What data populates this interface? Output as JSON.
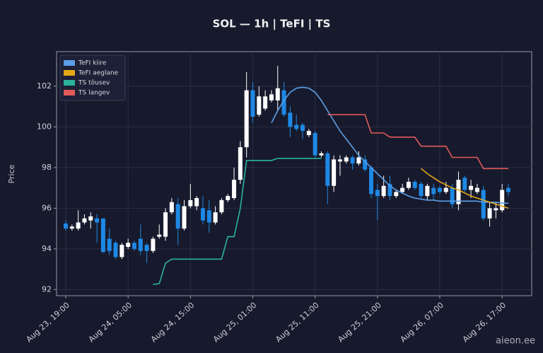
{
  "chart_data": {
    "type": "candlestick",
    "title": "SOL — 1h  |  TeFI  |  TS",
    "y_label": "Price",
    "watermark": "aieon.ee",
    "categories": [
      "Aug 23, 19:00",
      null,
      null,
      null,
      null,
      null,
      null,
      null,
      null,
      null,
      "Aug 24, 05:00",
      null,
      null,
      null,
      null,
      null,
      null,
      null,
      null,
      null,
      "Aug 24, 15:00",
      null,
      null,
      null,
      null,
      null,
      null,
      null,
      null,
      null,
      "Aug 25, 01:00",
      null,
      null,
      null,
      null,
      null,
      null,
      null,
      null,
      null,
      "Aug 25, 11:00",
      null,
      null,
      null,
      null,
      null,
      null,
      null,
      null,
      null,
      "Aug 25, 21:00",
      null,
      null,
      null,
      null,
      null,
      null,
      null,
      null,
      null,
      "Aug 26, 07:00",
      null,
      null,
      null,
      null,
      null,
      null,
      null,
      null,
      null,
      "Aug 26, 17:00",
      null
    ],
    "open": [
      95.25,
      95.0,
      95.0,
      95.3,
      95.4,
      95.5,
      95.5,
      94.5,
      94.3,
      93.6,
      94.1,
      94.3,
      94.5,
      94.2,
      93.9,
      94.6,
      94.6,
      95.8,
      96.2,
      95.0,
      96.1,
      96.1,
      96.0,
      95.9,
      95.3,
      95.8,
      96.4,
      96.5,
      97.4,
      99.0,
      101.8,
      100.6,
      100.9,
      101.3,
      101.3,
      101.8,
      100.7,
      100.1,
      100.1,
      99.6,
      99.7,
      98.6,
      98.7,
      97.1,
      98.3,
      98.3,
      98.5,
      98.2,
      98.4,
      98.0,
      96.9,
      96.6,
      97.2,
      96.6,
      96.8,
      97.0,
      97.3,
      97.2,
      96.6,
      97.0,
      97.0,
      96.8,
      97.0,
      96.2,
      97.5,
      96.9,
      96.8,
      96.9,
      95.5,
      95.9,
      95.9,
      97.0
    ],
    "high": [
      95.4,
      95.2,
      95.9,
      95.7,
      95.8,
      95.7,
      95.5,
      95.0,
      94.4,
      94.3,
      94.5,
      94.4,
      95.2,
      94.3,
      94.6,
      95.2,
      96.0,
      96.5,
      96.5,
      96.4,
      97.2,
      96.6,
      96.6,
      96.4,
      96.1,
      96.5,
      96.7,
      98.0,
      99.3,
      102.7,
      102.2,
      102.0,
      101.8,
      101.8,
      103.0,
      102.2,
      101.0,
      100.6,
      100.2,
      99.9,
      99.8,
      98.8,
      98.8,
      98.6,
      98.6,
      98.6,
      98.6,
      98.8,
      98.6,
      98.1,
      97.2,
      97.6,
      97.6,
      96.9,
      97.2,
      97.5,
      97.4,
      97.3,
      97.2,
      97.2,
      97.1,
      97.3,
      97.2,
      97.8,
      97.6,
      97.4,
      97.2,
      97.1,
      96.3,
      96.3,
      97.2,
      97.2
    ],
    "low": [
      94.9,
      94.9,
      94.9,
      95.2,
      95.0,
      94.3,
      93.8,
      93.7,
      93.5,
      93.5,
      94.0,
      93.9,
      93.7,
      93.3,
      93.8,
      94.5,
      94.4,
      95.7,
      94.2,
      94.9,
      96.0,
      95.9,
      95.2,
      94.8,
      95.2,
      95.7,
      96.3,
      96.4,
      97.2,
      98.5,
      100.2,
      100.5,
      100.8,
      101.2,
      100.8,
      100.5,
      99.5,
      99.8,
      99.4,
      99.5,
      98.5,
      98.5,
      96.2,
      96.8,
      97.6,
      98.2,
      97.9,
      98.1,
      97.8,
      96.5,
      95.4,
      96.5,
      96.4,
      96.5,
      96.7,
      96.9,
      96.9,
      96.5,
      96.4,
      96.4,
      96.7,
      96.7,
      96.0,
      95.9,
      96.8,
      96.5,
      96.7,
      95.4,
      95.1,
      95.5,
      95.8,
      96.6
    ],
    "close": [
      95.0,
      95.1,
      95.3,
      95.5,
      95.6,
      95.3,
      93.85,
      93.9,
      93.6,
      94.2,
      94.3,
      94.0,
      93.9,
      93.9,
      94.5,
      94.7,
      95.8,
      96.3,
      95.0,
      96.1,
      96.4,
      96.5,
      95.4,
      95.3,
      95.8,
      96.4,
      96.6,
      97.4,
      99.0,
      101.8,
      100.5,
      101.5,
      101.5,
      101.6,
      101.9,
      100.6,
      100.0,
      99.9,
      99.8,
      99.8,
      98.6,
      98.7,
      97.1,
      98.4,
      98.4,
      98.5,
      98.2,
      98.5,
      97.9,
      96.7,
      96.6,
      97.1,
      96.6,
      96.8,
      97.0,
      97.3,
      97.0,
      96.6,
      97.1,
      96.7,
      96.8,
      97.0,
      96.2,
      97.4,
      96.9,
      97.1,
      97.0,
      95.5,
      96.0,
      96.0,
      96.9,
      96.8
    ],
    "up_color": "#ffffff",
    "down_color": "#1e88e5",
    "series": [
      {
        "name": "TeFI kiire",
        "color": "#5b9ee6",
        "values": [
          null,
          null,
          null,
          null,
          null,
          null,
          null,
          null,
          null,
          null,
          null,
          null,
          null,
          null,
          null,
          null,
          null,
          null,
          null,
          null,
          null,
          null,
          null,
          null,
          null,
          null,
          null,
          null,
          null,
          null,
          null,
          null,
          null,
          100.2,
          100.8,
          101.3,
          101.7,
          101.9,
          101.95,
          101.9,
          101.7,
          101.3,
          100.8,
          100.3,
          99.8,
          99.4,
          99.0,
          98.6,
          98.3,
          98.0,
          97.7,
          97.4,
          97.1,
          96.9,
          96.75,
          96.6,
          96.5,
          96.45,
          96.4,
          96.4,
          96.35,
          96.35,
          96.35,
          96.35,
          96.35,
          96.35,
          96.35,
          96.3,
          96.3,
          96.3,
          96.25,
          96.25
        ]
      },
      {
        "name": "TeFI aeglane",
        "color": "#e6a817",
        "values": [
          null,
          null,
          null,
          null,
          null,
          null,
          null,
          null,
          null,
          null,
          null,
          null,
          null,
          null,
          null,
          null,
          null,
          null,
          null,
          null,
          null,
          null,
          null,
          null,
          null,
          null,
          null,
          null,
          null,
          null,
          null,
          null,
          null,
          null,
          null,
          null,
          null,
          null,
          null,
          null,
          null,
          null,
          null,
          null,
          null,
          null,
          null,
          null,
          null,
          null,
          null,
          null,
          null,
          null,
          null,
          null,
          null,
          97.95,
          97.7,
          97.5,
          97.3,
          97.15,
          97.0,
          96.9,
          96.75,
          96.6,
          96.5,
          96.4,
          96.3,
          96.2,
          96.1,
          96.0
        ]
      },
      {
        "name": "TS tõusev",
        "color": "#2bb39a",
        "values": [
          null,
          null,
          null,
          null,
          null,
          null,
          null,
          null,
          null,
          null,
          null,
          null,
          null,
          null,
          92.25,
          92.3,
          93.3,
          93.5,
          93.5,
          93.5,
          93.5,
          93.5,
          93.5,
          93.5,
          93.5,
          93.5,
          94.6,
          94.6,
          96.0,
          98.35,
          98.35,
          98.35,
          98.35,
          98.35,
          98.45,
          98.45,
          98.45,
          98.45,
          98.45,
          98.45,
          98.45,
          98.45,
          null,
          null,
          null,
          null,
          null,
          null,
          null,
          null,
          null,
          null,
          null,
          null,
          null,
          null,
          null,
          null,
          null,
          null,
          null,
          null,
          null,
          null,
          null,
          null,
          null,
          null,
          null,
          null,
          null,
          null
        ]
      },
      {
        "name": "TS langev",
        "color": "#e05a5a",
        "values": [
          null,
          null,
          null,
          null,
          null,
          null,
          null,
          null,
          null,
          null,
          null,
          null,
          null,
          null,
          null,
          null,
          null,
          null,
          null,
          null,
          null,
          null,
          null,
          null,
          null,
          null,
          null,
          null,
          null,
          null,
          null,
          null,
          null,
          null,
          null,
          null,
          null,
          null,
          null,
          null,
          null,
          null,
          100.6,
          100.6,
          100.6,
          100.6,
          100.6,
          100.6,
          100.6,
          99.7,
          99.7,
          99.7,
          99.5,
          99.5,
          99.5,
          99.5,
          99.5,
          99.05,
          99.05,
          99.05,
          99.05,
          99.05,
          98.5,
          98.5,
          98.5,
          98.5,
          98.5,
          97.95,
          97.95,
          97.95,
          97.95,
          97.95
        ]
      }
    ],
    "ylim": [
      91.7,
      103.7
    ],
    "yticks": [
      92,
      94,
      96,
      98,
      100,
      102
    ],
    "grid": true,
    "legend": "upper left"
  }
}
